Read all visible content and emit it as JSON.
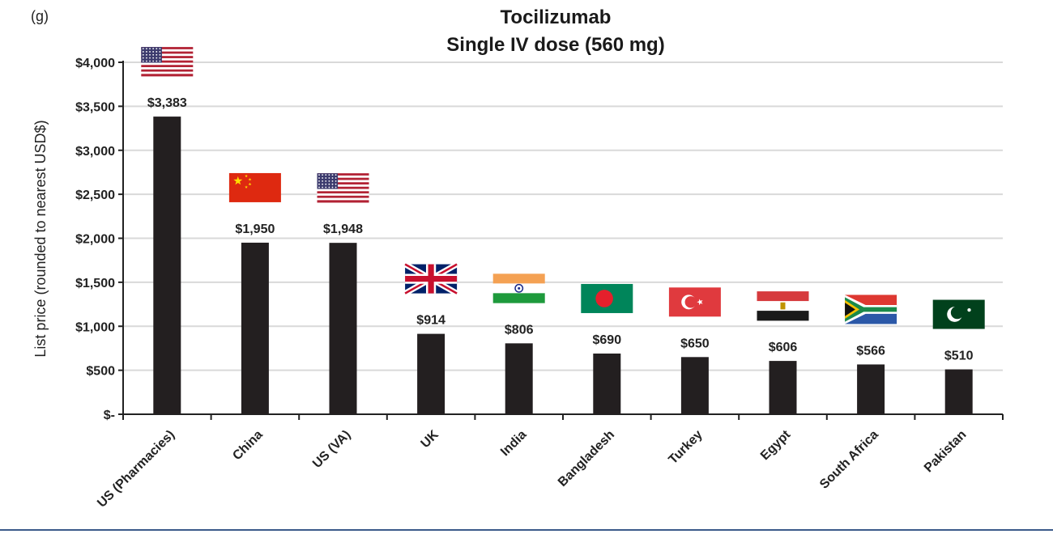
{
  "panel_label": "(g)",
  "chart_data": {
    "type": "bar",
    "title": "Tocilizumab",
    "subtitle": "Single IV dose (560 mg)",
    "xlabel": "",
    "ylabel": "List price (rounded to nearest USD$)",
    "ylim": [
      0,
      4000
    ],
    "y_ticks": [
      0,
      500,
      1000,
      1500,
      2000,
      2500,
      3000,
      3500,
      4000
    ],
    "y_tick_labels": [
      "$-",
      "$500",
      "$1,000",
      "$1,500",
      "$2,000",
      "$2,500",
      "$3,000",
      "$3,500",
      "$4,000"
    ],
    "grid": true,
    "categories": [
      "US (Pharmacies)",
      "China",
      "US (VA)",
      "UK",
      "India",
      "Bangladesh",
      "Turkey",
      "Egypt",
      "South Africa",
      "Pakistan"
    ],
    "values": [
      3383,
      1950,
      1948,
      914,
      806,
      690,
      650,
      606,
      566,
      510
    ],
    "data_labels": [
      "$3,383",
      "$1,950",
      "$1,948",
      "$914",
      "$806",
      "$690",
      "$650",
      "$606",
      "$566",
      "$510"
    ],
    "flags": [
      "us-flag",
      "china-flag",
      "us-flag",
      "uk-flag",
      "india-flag",
      "bangladesh-flag",
      "turkey-flag",
      "egypt-flag",
      "south-africa-flag",
      "pakistan-flag"
    ],
    "bar_color": "#231f20"
  }
}
